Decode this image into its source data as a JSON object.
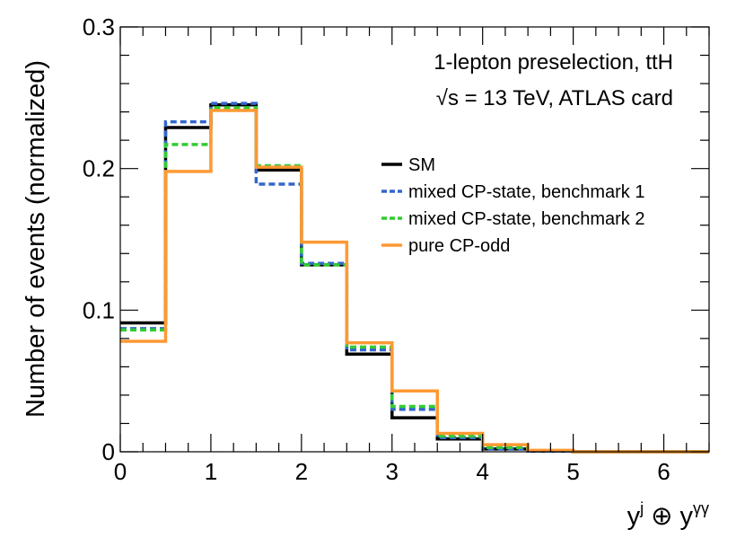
{
  "chart_data": {
    "type": "line",
    "drawstyle": "steps",
    "xlabel": "",
    "xlabel_parts": {
      "a": "y",
      "a_sup": "j",
      "op": " ⊕ ",
      "b": "y",
      "b_sup": "γγ"
    },
    "ylabel": "Number of events (normalized)",
    "xlim": [
      0,
      6.5
    ],
    "ylim": [
      0,
      0.3
    ],
    "xticks": [
      0,
      1,
      2,
      3,
      4,
      5,
      6
    ],
    "xtick_labels": [
      "0",
      "1",
      "2",
      "3",
      "4",
      "5",
      "6"
    ],
    "yticks": [
      0,
      0.1,
      0.2,
      0.3
    ],
    "ytick_labels": [
      "0",
      "0.1",
      "0.2",
      "0.3"
    ],
    "bin_edges": [
      0,
      0.5,
      1,
      1.5,
      2,
      2.5,
      3,
      3.5,
      4,
      4.5,
      5,
      5.5,
      6,
      6.5
    ],
    "annotations": {
      "line1": "1-lepton preselection, ttH",
      "line2_sqrt": "√",
      "line2_rest": "s = 13 TeV, ATLAS card"
    },
    "legend_position": "right",
    "grid": false,
    "series": [
      {
        "name": "SM",
        "color": "#000000",
        "dash": "solid",
        "values": [
          0.091,
          0.229,
          0.245,
          0.199,
          0.132,
          0.069,
          0.024,
          0.009,
          0.002,
          0.0005,
          0,
          0,
          0
        ]
      },
      {
        "name": "mixed CP-state, benchmark 1",
        "color": "#3366cc",
        "dash": "dashed",
        "values": [
          0.087,
          0.233,
          0.246,
          0.189,
          0.133,
          0.072,
          0.03,
          0.01,
          0.002,
          0.0005,
          0,
          0,
          0
        ]
      },
      {
        "name": "mixed CP-state, benchmark 2",
        "color": "#33cc33",
        "dash": "dashed",
        "values": [
          0.086,
          0.217,
          0.243,
          0.202,
          0.132,
          0.074,
          0.032,
          0.011,
          0.003,
          0.0008,
          0,
          0,
          0
        ]
      },
      {
        "name": "pure CP-odd",
        "color": "#ff9933",
        "dash": "solid",
        "values": [
          0.078,
          0.198,
          0.241,
          0.201,
          0.148,
          0.077,
          0.043,
          0.013,
          0.005,
          0.001,
          0,
          0,
          0
        ]
      }
    ]
  }
}
